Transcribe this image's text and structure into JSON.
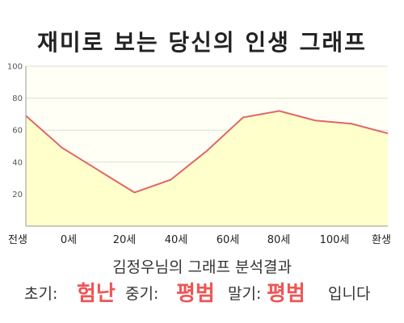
{
  "title": "재미로 보는 당신의 인생 그래프",
  "subtitle": "김정우님의 그래프 분석결과",
  "result": {
    "early_label": "초기:",
    "early_value": "험난",
    "mid_label": "중기:",
    "mid_value": "평범",
    "late_label": "말기:",
    "late_value": "평범",
    "ending": "입니다"
  },
  "colors": {
    "line": "#e06666",
    "area": "#ffffcc",
    "plot_bg": "#fffff5",
    "grid": "#dddddd",
    "accent": "#ee5555"
  },
  "chart_data": {
    "type": "area",
    "title": "",
    "xlabel": "",
    "ylabel": "",
    "ylim": [
      0,
      100
    ],
    "yticks": [
      20,
      40,
      60,
      80,
      100
    ],
    "xlim": [
      0,
      10
    ],
    "xticks": [
      {
        "pos": 0,
        "label": "전생"
      },
      {
        "pos": 1,
        "label": "0세"
      },
      {
        "pos": 2,
        "label": "20세"
      },
      {
        "pos": 3,
        "label": "40세"
      },
      {
        "pos": 4,
        "label": "60세"
      },
      {
        "pos": 5,
        "label": "80세"
      },
      {
        "pos": 6,
        "label": "100세"
      },
      {
        "pos": 7,
        "label": "환생"
      }
    ],
    "grid": true,
    "series": [
      {
        "points": [
          [
            0,
            69
          ],
          [
            1,
            49
          ],
          [
            2,
            35
          ],
          [
            3,
            21
          ],
          [
            4,
            29
          ],
          [
            5,
            47
          ],
          [
            6,
            68
          ],
          [
            7,
            72
          ],
          [
            8,
            66
          ],
          [
            9,
            64
          ],
          [
            10,
            58
          ]
        ]
      }
    ]
  }
}
